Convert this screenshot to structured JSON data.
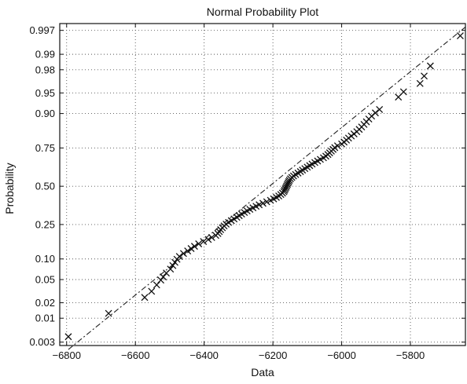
{
  "chart_data": {
    "type": "scatter",
    "title": "Normal Probability Plot",
    "xlabel": "Data",
    "ylabel": "Probability",
    "xlim": [
      -6820,
      -5640
    ],
    "ylim": [
      0.003,
      0.997
    ],
    "y_scale": "normal-probability",
    "grid": true,
    "x_ticks": [
      -6800,
      -6600,
      -6400,
      -6200,
      -6000,
      -5800
    ],
    "x_tick_labels": [
      "−6800",
      "−6600",
      "−6400",
      "−6200",
      "−6000",
      "−5800"
    ],
    "y_ticks": [
      0.003,
      0.01,
      0.02,
      0.05,
      0.1,
      0.25,
      0.5,
      0.75,
      0.9,
      0.95,
      0.98,
      0.99,
      0.997
    ],
    "y_tick_labels": [
      "0.003",
      "0.01",
      "0.02",
      "0.05",
      "0.10",
      "0.25",
      "0.50",
      "0.75",
      "0.90",
      "0.95",
      "0.98",
      "0.99",
      "0.997"
    ],
    "marker": "x",
    "series": [
      {
        "points": [
          [
            -6795,
            0.004
          ],
          [
            -6678,
            0.0125
          ],
          [
            -6573,
            0.025
          ],
          [
            -6553,
            0.032
          ],
          [
            -6538,
            0.041
          ],
          [
            -6526,
            0.049
          ],
          [
            -6519,
            0.055
          ],
          [
            -6510,
            0.063
          ],
          [
            -6498,
            0.072
          ],
          [
            -6491,
            0.081
          ],
          [
            -6485,
            0.09
          ],
          [
            -6479,
            0.099
          ],
          [
            -6472,
            0.108
          ],
          [
            -6460,
            0.118
          ],
          [
            -6448,
            0.127
          ],
          [
            -6438,
            0.136
          ],
          [
            -6428,
            0.145
          ],
          [
            -6416,
            0.155
          ],
          [
            -6402,
            0.165
          ],
          [
            -6388,
            0.174
          ],
          [
            -6378,
            0.183
          ],
          [
            -6366,
            0.193
          ],
          [
            -6360,
            0.202
          ],
          [
            -6356,
            0.212
          ],
          [
            -6352,
            0.222
          ],
          [
            -6347,
            0.232
          ],
          [
            -6342,
            0.242
          ],
          [
            -6336,
            0.252
          ],
          [
            -6329,
            0.262
          ],
          [
            -6321,
            0.272
          ],
          [
            -6313,
            0.282
          ],
          [
            -6305,
            0.292
          ],
          [
            -6298,
            0.302
          ],
          [
            -6291,
            0.312
          ],
          [
            -6283,
            0.322
          ],
          [
            -6275,
            0.332
          ],
          [
            -6267,
            0.342
          ],
          [
            -6258,
            0.352
          ],
          [
            -6249,
            0.362
          ],
          [
            -6240,
            0.372
          ],
          [
            -6229,
            0.382
          ],
          [
            -6218,
            0.392
          ],
          [
            -6207,
            0.402
          ],
          [
            -6198,
            0.412
          ],
          [
            -6190,
            0.422
          ],
          [
            -6183,
            0.432
          ],
          [
            -6177,
            0.442
          ],
          [
            -6172,
            0.452
          ],
          [
            -6168,
            0.462
          ],
          [
            -6166,
            0.472
          ],
          [
            -6164,
            0.482
          ],
          [
            -6162,
            0.492
          ],
          [
            -6160,
            0.502
          ],
          [
            -6158,
            0.512
          ],
          [
            -6156,
            0.522
          ],
          [
            -6154,
            0.532
          ],
          [
            -6152,
            0.542
          ],
          [
            -6149,
            0.552
          ],
          [
            -6145,
            0.562
          ],
          [
            -6140,
            0.572
          ],
          [
            -6134,
            0.582
          ],
          [
            -6127,
            0.592
          ],
          [
            -6120,
            0.602
          ],
          [
            -6114,
            0.612
          ],
          [
            -6107,
            0.622
          ],
          [
            -6100,
            0.632
          ],
          [
            -6093,
            0.642
          ],
          [
            -6086,
            0.652
          ],
          [
            -6078,
            0.662
          ],
          [
            -6070,
            0.672
          ],
          [
            -6062,
            0.682
          ],
          [
            -6053,
            0.692
          ],
          [
            -6046,
            0.702
          ],
          [
            -6040,
            0.712
          ],
          [
            -6035,
            0.722
          ],
          [
            -6030,
            0.732
          ],
          [
            -6025,
            0.742
          ],
          [
            -6020,
            0.752
          ],
          [
            -6012,
            0.762
          ],
          [
            -6000,
            0.772
          ],
          [
            -5993,
            0.782
          ],
          [
            -5986,
            0.792
          ],
          [
            -5980,
            0.802
          ],
          [
            -5972,
            0.812
          ],
          [
            -5964,
            0.822
          ],
          [
            -5956,
            0.832
          ],
          [
            -5949,
            0.842
          ],
          [
            -5942,
            0.852
          ],
          [
            -5935,
            0.862
          ],
          [
            -5928,
            0.872
          ],
          [
            -5921,
            0.882
          ],
          [
            -5913,
            0.892
          ],
          [
            -5902,
            0.902
          ],
          [
            -5890,
            0.912
          ],
          [
            -5835,
            0.942
          ],
          [
            -5820,
            0.952
          ],
          [
            -5772,
            0.965
          ],
          [
            -5760,
            0.974
          ],
          [
            -5742,
            0.983
          ],
          [
            -5655,
            0.996
          ]
        ]
      }
    ],
    "fit_line": {
      "x": [
        -6795,
        -5640
      ],
      "y": [
        0.002,
        0.9975
      ]
    }
  }
}
